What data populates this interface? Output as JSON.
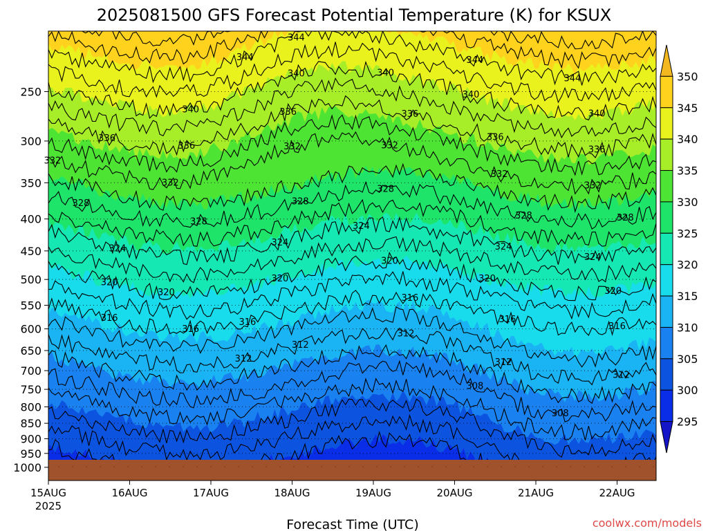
{
  "page": {
    "title": "2025081500 GFS Forecast Potential Temperature (K) for KSUX",
    "credit": "coolwx.com/models"
  },
  "chart_data": {
    "type": "heatmap",
    "title": "2025081500 GFS Forecast Potential Temperature (K) for KSUX",
    "xlabel": "Forecast Time (UTC)",
    "ylabel": "",
    "x_ticks": [
      "15AUG",
      "16AUG",
      "17AUG",
      "18AUG",
      "19AUG",
      "20AUG",
      "21AUG",
      "22AUG"
    ],
    "x_tick_sublabel": "2025",
    "y_ticks": [
      250,
      300,
      350,
      400,
      450,
      500,
      550,
      600,
      650,
      700,
      750,
      800,
      850,
      900,
      950,
      1000
    ],
    "y_scale": "log",
    "ylim": [
      1000,
      200
    ],
    "colorbar": {
      "levels": [
        295,
        300,
        305,
        310,
        315,
        320,
        325,
        330,
        335,
        340,
        345,
        350
      ],
      "colors": [
        "#1414c8",
        "#0a2ee8",
        "#0c54e0",
        "#1a82f0",
        "#1ab4f4",
        "#18dcec",
        "#16e8b4",
        "#1ee46a",
        "#4ee434",
        "#a8ee28",
        "#eaf21e",
        "#ffd21e",
        "#f3b81f"
      ],
      "extend": "both"
    },
    "contour_labels": [
      {
        "time": 0.05,
        "level": 332
      },
      {
        "time": 0.72,
        "level": 336
      },
      {
        "time": 1.7,
        "level": 336
      },
      {
        "time": 1.75,
        "level": 340
      },
      {
        "time": 2.42,
        "level": 344
      },
      {
        "time": 3.05,
        "level": 344
      },
      {
        "time": 3.05,
        "level": 340
      },
      {
        "time": 4.15,
        "level": 340
      },
      {
        "time": 4.45,
        "level": 336
      },
      {
        "time": 5.25,
        "level": 344
      },
      {
        "time": 5.2,
        "level": 340
      },
      {
        "time": 5.5,
        "level": 336
      },
      {
        "time": 6.45,
        "level": 344
      },
      {
        "time": 6.75,
        "level": 340
      },
      {
        "time": 6.75,
        "level": 336
      },
      {
        "time": 0.4,
        "level": 328
      },
      {
        "time": 1.5,
        "level": 332
      },
      {
        "time": 2.95,
        "level": 336
      },
      {
        "time": 3.0,
        "level": 332
      },
      {
        "time": 4.2,
        "level": 332
      },
      {
        "time": 5.55,
        "level": 332
      },
      {
        "time": 6.7,
        "level": 332
      },
      {
        "time": 7.1,
        "level": 328
      },
      {
        "time": 0.85,
        "level": 324
      },
      {
        "time": 1.85,
        "level": 328
      },
      {
        "time": 3.1,
        "level": 328
      },
      {
        "time": 4.15,
        "level": 328
      },
      {
        "time": 5.85,
        "level": 328
      },
      {
        "time": 0.75,
        "level": 320
      },
      {
        "time": 1.45,
        "level": 320
      },
      {
        "time": 2.85,
        "level": 324
      },
      {
        "time": 2.85,
        "level": 320
      },
      {
        "time": 3.85,
        "level": 324
      },
      {
        "time": 4.2,
        "level": 320
      },
      {
        "time": 5.6,
        "level": 324
      },
      {
        "time": 6.7,
        "level": 324
      },
      {
        "time": 6.95,
        "level": 320
      },
      {
        "time": 5.4,
        "level": 320
      },
      {
        "time": 5.65,
        "level": 316
      },
      {
        "time": 7.0,
        "level": 316
      },
      {
        "time": 0.75,
        "level": 316
      },
      {
        "time": 1.75,
        "level": 316
      },
      {
        "time": 2.45,
        "level": 316
      },
      {
        "time": 4.45,
        "level": 316
      },
      {
        "time": 5.6,
        "level": 312
      },
      {
        "time": 7.05,
        "level": 312
      },
      {
        "time": 2.4,
        "level": 312
      },
      {
        "time": 4.4,
        "level": 312
      },
      {
        "time": 3.1,
        "level": 312
      },
      {
        "time": 5.25,
        "level": 308
      },
      {
        "time": 6.3,
        "level": 308
      }
    ]
  }
}
